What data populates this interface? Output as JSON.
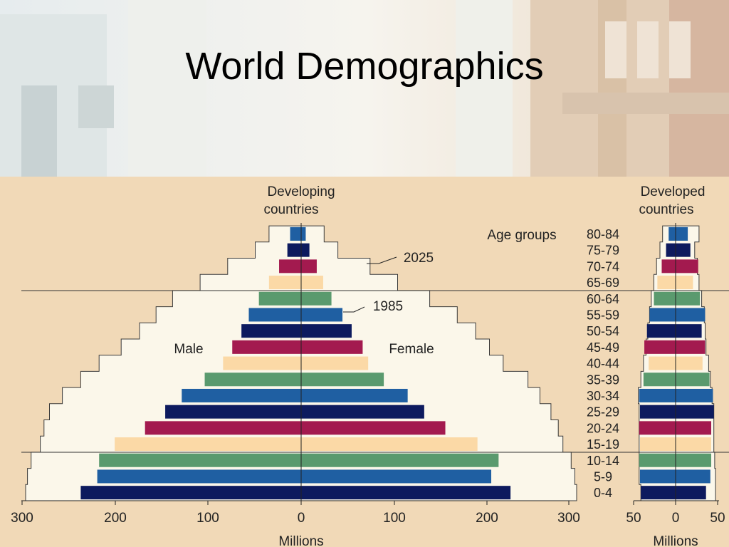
{
  "slide": {
    "title": "World Demographics"
  },
  "colors": {
    "panel": "#f1d9b7",
    "envelope": "#fbf7ea",
    "cycle": [
      "#0d1a5e",
      "#1f5fa2",
      "#5a9a6e",
      "#fbd9a6",
      "#a31a4f"
    ]
  },
  "chart_data": [
    {
      "type": "bar",
      "title": "Developing countries",
      "xlabel": "Millions",
      "ylabel": "Age groups",
      "categories": [
        "0-4",
        "5-9",
        "10-14",
        "15-19",
        "20-24",
        "25-29",
        "30-34",
        "35-39",
        "40-44",
        "45-49",
        "50-54",
        "55-59",
        "60-64",
        "65-69",
        "70-74",
        "75-79",
        "80-84"
      ],
      "xlim": [
        -300,
        300
      ],
      "xticks": [
        "300",
        "200",
        "100",
        "0",
        "100",
        "200",
        "300"
      ],
      "series": [
        {
          "name": "Male",
          "year": "1985",
          "values": [
            240,
            222,
            220,
            203,
            170,
            148,
            130,
            105,
            85,
            75,
            65,
            57,
            46,
            35,
            24,
            15,
            12
          ]
        },
        {
          "name": "Female",
          "year": "1985",
          "values": [
            228,
            207,
            215,
            192,
            157,
            134,
            116,
            90,
            73,
            67,
            55,
            45,
            33,
            24,
            17,
            9,
            5
          ]
        },
        {
          "name": "Male",
          "year": "2025",
          "values": [
            300,
            298,
            294,
            284,
            280,
            274,
            260,
            240,
            220,
            196,
            176,
            158,
            140,
            110,
            80,
            50,
            35
          ]
        },
        {
          "name": "Female",
          "year": "2025",
          "values": [
            300,
            298,
            294,
            285,
            280,
            272,
            260,
            247,
            220,
            205,
            190,
            170,
            140,
            105,
            75,
            40,
            25
          ]
        }
      ],
      "annotations": {
        "male": "Male",
        "female": "Female",
        "y1985": "1985",
        "y2025": "2025"
      }
    },
    {
      "type": "bar",
      "title": "Developed countries",
      "xlabel": "Millions",
      "categories": [
        "0-4",
        "5-9",
        "10-14",
        "15-19",
        "20-24",
        "25-29",
        "30-34",
        "35-39",
        "40-44",
        "45-49",
        "50-54",
        "55-59",
        "60-64",
        "65-69",
        "70-74",
        "75-79",
        "80-84"
      ],
      "xlim": [
        -50,
        50
      ],
      "xticks": [
        "50",
        "0",
        "50"
      ],
      "series": [
        {
          "name": "Male",
          "year": "1985",
          "values": [
            40,
            41,
            42,
            41,
            42,
            41,
            42,
            37,
            31,
            36,
            33,
            30,
            25,
            21,
            16,
            11,
            8
          ]
        },
        {
          "name": "Female",
          "year": "1985",
          "values": [
            35,
            40,
            41,
            41,
            41,
            44,
            43,
            39,
            31,
            34,
            30,
            34,
            28,
            20,
            26,
            17,
            14
          ]
        },
        {
          "name": "Male",
          "year": "2025",
          "values": [
            40,
            42,
            42,
            42,
            42,
            42,
            43,
            40,
            37,
            34,
            32,
            30,
            28,
            25,
            22,
            18,
            15
          ]
        },
        {
          "name": "Female",
          "year": "2025",
          "values": [
            46,
            46,
            45,
            44,
            44,
            44,
            42,
            40,
            38,
            35,
            34,
            33,
            30,
            27,
            25,
            22,
            27
          ]
        }
      ]
    }
  ]
}
